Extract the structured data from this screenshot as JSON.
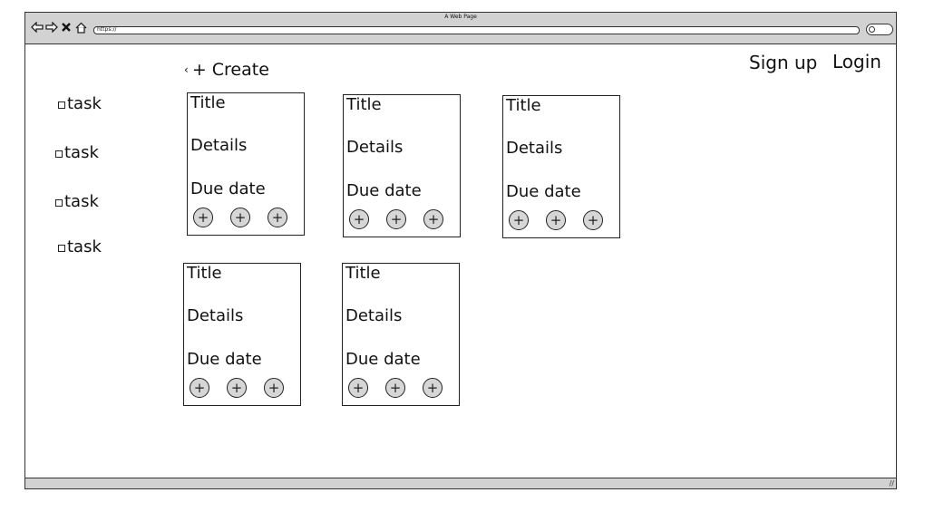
{
  "window": {
    "title": "A Web Page",
    "url": "https://"
  },
  "header": {
    "create_label": "+ Create",
    "signup_label": "Sign up",
    "login_label": "Login"
  },
  "sidebar": {
    "items": [
      {
        "label": "task"
      },
      {
        "label": "task"
      },
      {
        "label": "task"
      },
      {
        "label": "task"
      }
    ]
  },
  "cards": [
    {
      "title": "Title",
      "details": "Details",
      "due": "Due date"
    },
    {
      "title": "Title",
      "details": "Details",
      "due": "Due date"
    },
    {
      "title": "Title",
      "details": "Details",
      "due": "Due date"
    },
    {
      "title": "Title",
      "details": "Details",
      "due": "Due date"
    },
    {
      "title": "Title",
      "details": "Details",
      "due": "Due date"
    }
  ],
  "icons": {
    "back": "back-arrow-icon",
    "forward": "forward-arrow-icon",
    "close": "close-icon",
    "home": "home-icon",
    "search": "search-icon",
    "add": "plus-circle-icon",
    "checkbox": "checkbox-icon",
    "chevron": "chevron-left-icon"
  },
  "colors": {
    "chrome": "#d2d2d2",
    "border": "#333333",
    "button_fill": "#d6d6d6"
  }
}
